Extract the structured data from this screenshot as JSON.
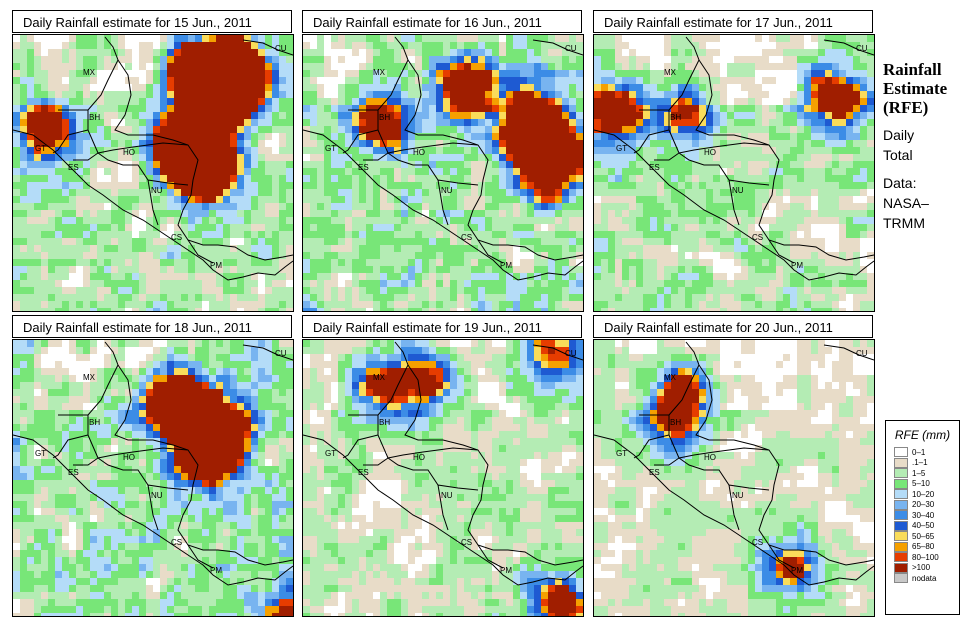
{
  "panels": [
    {
      "title": "Daily Rainfall estimate for  15 Jun., 2011",
      "seed": 15,
      "hot": [
        [
          190,
          40,
          2.2
        ],
        [
          220,
          40,
          1.9
        ],
        [
          205,
          55,
          1.7
        ],
        [
          175,
          110,
          1.6
        ],
        [
          190,
          130,
          1.8
        ],
        [
          30,
          95,
          1.0
        ]
      ],
      "wet": 0.55
    },
    {
      "title": "Daily Rainfall estimate for  16 Jun., 2011",
      "seed": 16,
      "hot": [
        [
          230,
          90,
          1.4
        ],
        [
          245,
          125,
          1.6
        ],
        [
          165,
          50,
          1.2
        ],
        [
          80,
          85,
          0.9
        ]
      ],
      "wet": 0.62
    },
    {
      "title": "Daily Rainfall estimate for  17 Jun., 2011",
      "seed": 17,
      "hot": [
        [
          20,
          75,
          1.2
        ],
        [
          240,
          65,
          1.0
        ],
        [
          90,
          75,
          0.8
        ]
      ],
      "wet": 0.5
    },
    {
      "title": "Daily Rainfall estimate for  18 Jun., 2011",
      "seed": 18,
      "hot": [
        [
          160,
          60,
          1.4
        ],
        [
          200,
          90,
          1.7
        ],
        [
          190,
          115,
          1.2
        ],
        [
          280,
          275,
          0.8
        ]
      ],
      "wet": 0.6
    },
    {
      "title": "Daily Rainfall estimate for  19 Jun., 2011",
      "seed": 19,
      "hot": [
        [
          80,
          45,
          1.0
        ],
        [
          125,
          40,
          0.9
        ],
        [
          250,
          15,
          0.8
        ],
        [
          255,
          265,
          1.0
        ]
      ],
      "wet": 0.45
    },
    {
      "title": "Daily Rainfall estimate for  20 Jun., 2011",
      "seed": 20,
      "hot": [
        [
          90,
          50,
          1.0
        ],
        [
          75,
          85,
          0.7
        ],
        [
          195,
          225,
          0.8
        ]
      ],
      "wet": 0.38
    }
  ],
  "country_labels": [
    "MX",
    "CU",
    "BH",
    "GT",
    "HO",
    "ES",
    "NU",
    "CS",
    "PM"
  ],
  "sidebar": {
    "title_line1": "Rainfall",
    "title_line2": "Estimate",
    "title_line3": "(RFE)",
    "daily_line1": "Daily",
    "daily_line2": "Total",
    "data_line1": "Data:",
    "data_line2": "NASA–",
    "data_line3": "TRMM"
  },
  "legend": {
    "title": "RFE (mm)",
    "items": [
      {
        "label": "0–1",
        "color": "#ffffff"
      },
      {
        "label": ".1–1",
        "color": "#e8dcc8"
      },
      {
        "label": "1–5",
        "color": "#b4ecb4"
      },
      {
        "label": "5–10",
        "color": "#78e678"
      },
      {
        "label": "10–20",
        "color": "#b4dcf8"
      },
      {
        "label": "20–30",
        "color": "#78b4f0"
      },
      {
        "label": "30–40",
        "color": "#3c8ce6"
      },
      {
        "label": "40–50",
        "color": "#1e5ad2"
      },
      {
        "label": "50–65",
        "color": "#fadc5a"
      },
      {
        "label": "65–80",
        "color": "#f5a000"
      },
      {
        "label": "80–100",
        "color": "#e63c00"
      },
      {
        "label": ">100",
        "color": "#a01e00"
      },
      {
        "label": "nodata",
        "color": "#c8c8c8"
      }
    ]
  }
}
